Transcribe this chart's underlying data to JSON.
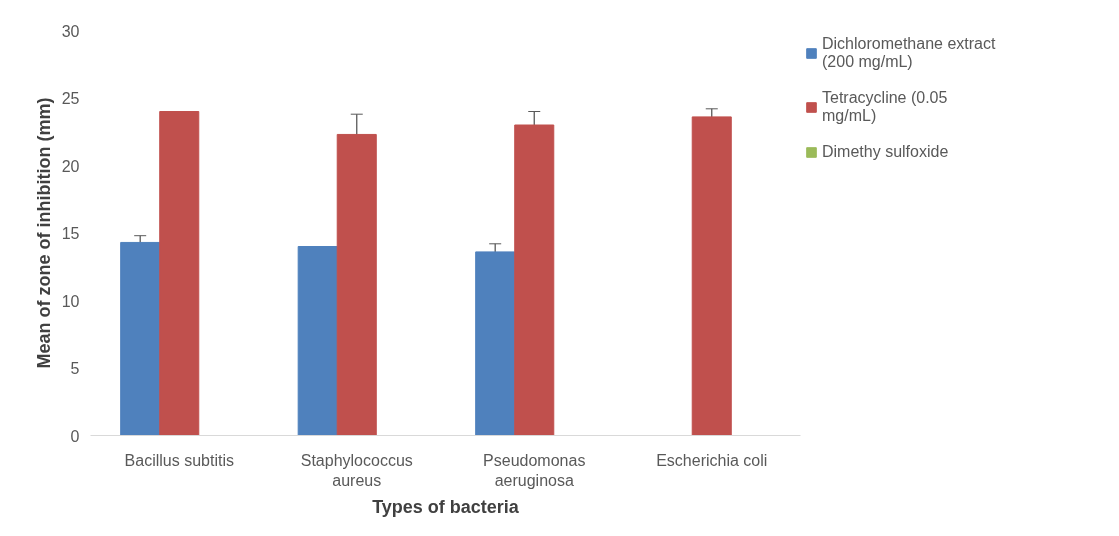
{
  "chart_data": {
    "type": "bar",
    "xlabel": "Types of bacteria",
    "ylabel": "Mean of zone of inhibition (mm)",
    "categories": [
      "Bacillus subtitis",
      "Staphylococcus aureus",
      "Pseudomonas aeruginosa",
      "Escherichia coli"
    ],
    "series": [
      {
        "name": "Dichloromethane extract (200 mg/mL)",
        "color": "#4f81bd",
        "values": [
          14.3,
          14.0,
          13.6,
          0
        ],
        "errors": [
          0.5,
          null,
          0.6,
          null
        ]
      },
      {
        "name": "Tetracycline (0.05 mg/mL)",
        "color": "#c0504d",
        "values": [
          24.0,
          22.3,
          23.0,
          23.6
        ],
        "errors": [
          null,
          1.5,
          1.0,
          0.6
        ]
      },
      {
        "name": "Dimethy sulfoxide",
        "color": "#9bbb59",
        "values": [
          0,
          0,
          0,
          0
        ]
      }
    ],
    "ylim": [
      0,
      30
    ],
    "yticks": [
      0,
      5,
      10,
      15,
      20,
      25,
      30
    ],
    "grid": false,
    "legend": "right"
  }
}
